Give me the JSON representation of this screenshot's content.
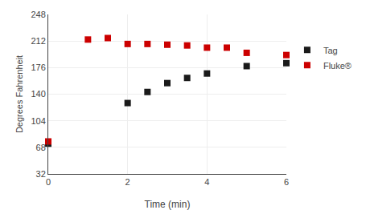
{
  "chart_data": {
    "type": "scatter",
    "xlabel": "Time (min)",
    "ylabel": "Degrees Fahrenheit",
    "xlim": [
      0,
      6
    ],
    "ylim": [
      32,
      248
    ],
    "xticks": [
      0,
      2,
      4,
      6
    ],
    "yticks": [
      32,
      68,
      104,
      140,
      176,
      212,
      248
    ],
    "grid": true,
    "legend": "right",
    "marker": "square",
    "series": [
      {
        "name": "Tag",
        "color": "#1a1a1a",
        "x": [
          0,
          2.0,
          2.5,
          3.0,
          3.5,
          4.0,
          5.0,
          6.0
        ],
        "values": [
          73,
          128,
          143,
          155,
          162,
          168,
          178,
          182
        ]
      },
      {
        "name": "Fluke®",
        "color": "#cc0000",
        "x": [
          0,
          1.0,
          1.5,
          2.0,
          2.5,
          3.0,
          3.5,
          4.0,
          4.5,
          5.0,
          6.0
        ],
        "values": [
          76,
          214,
          216,
          208,
          208,
          207,
          206,
          203,
          203,
          196,
          193
        ]
      }
    ]
  }
}
